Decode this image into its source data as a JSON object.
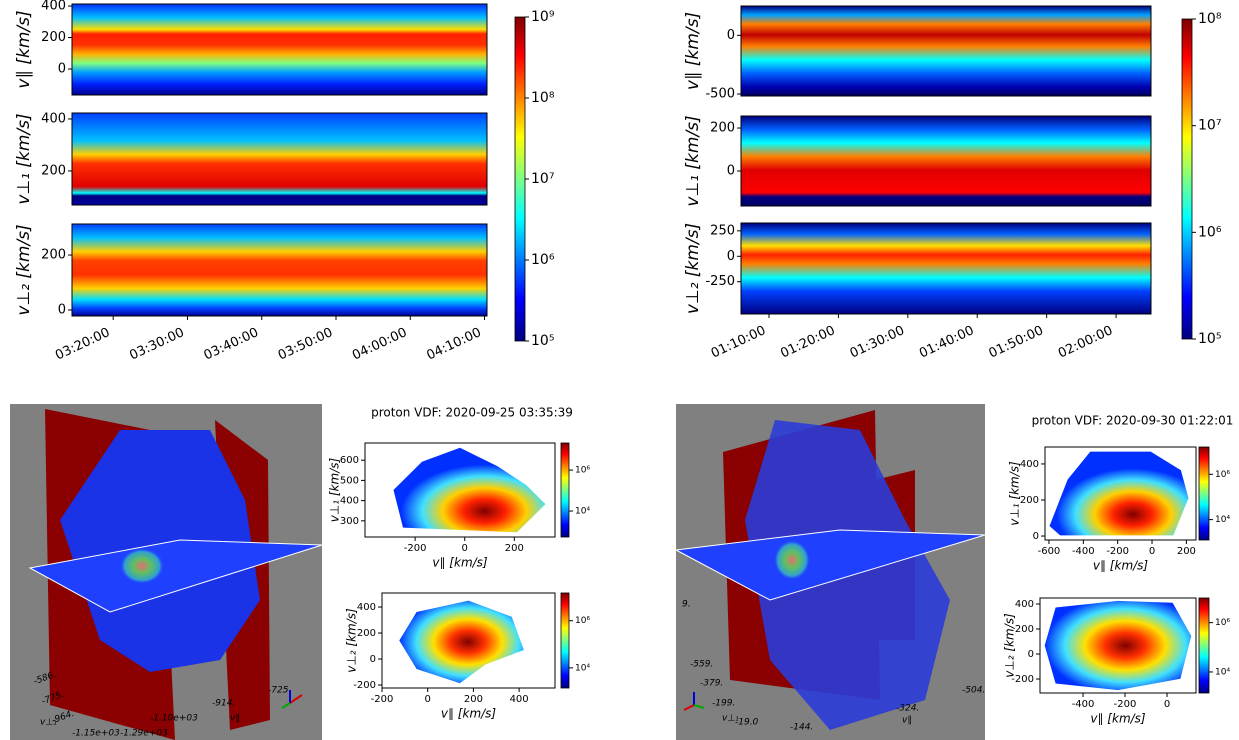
{
  "chart_data": [
    {
      "type": "heatmap",
      "ylabel": "v∥ [km/s]",
      "ylim": [
        -165,
        413
      ],
      "yticks": [
        0,
        200,
        400
      ]
    },
    {
      "type": "heatmap",
      "ylabel": "v⊥₁ [km/s]",
      "ylim": [
        69,
        423
      ],
      "yticks": [
        200,
        400
      ]
    },
    {
      "type": "heatmap",
      "ylabel": "v⊥₂ [km/s]",
      "ylim": [
        -22,
        313
      ],
      "yticks": [
        0,
        200
      ],
      "xlim": [
        "03:14:27",
        "04:10:20"
      ],
      "xticks": [
        "03:20:00",
        "03:30:00",
        "03:40:00",
        "03:50:00",
        "04:00:00",
        "04:10:00"
      ]
    },
    {
      "type": "colorbar",
      "log_scale": true,
      "ylim": [
        100000,
        1000000000
      ],
      "yticks": [
        {
          "value": 100000,
          "label": "10⁵"
        },
        {
          "value": 1000000,
          "label": "10⁶"
        },
        {
          "value": 10000000,
          "label": "10⁷"
        },
        {
          "value": 100000000,
          "label": "10⁸"
        },
        {
          "value": 1000000000,
          "label": "10⁹"
        }
      ]
    },
    {
      "type": "heatmap",
      "ylabel": "v∥ [km/s]",
      "ylim": [
        -517,
        250
      ],
      "yticks": [
        -500,
        0
      ]
    },
    {
      "type": "heatmap",
      "ylabel": "v⊥₁ [km/s]",
      "ylim": [
        -163,
        256
      ],
      "yticks": [
        0,
        200
      ]
    },
    {
      "type": "heatmap",
      "ylabel": "v⊥₂ [km/s]",
      "ylim": [
        -567,
        327
      ],
      "yticks": [
        -250,
        0,
        250
      ],
      "xlim": [
        "01:05:58",
        "02:05:02"
      ],
      "xticks": [
        "01:10:00",
        "01:20:00",
        "01:30:00",
        "01:40:00",
        "01:50:00",
        "02:00:00"
      ]
    },
    {
      "type": "colorbar",
      "log_scale": true,
      "ylim": [
        100000,
        100000000
      ],
      "yticks": [
        {
          "value": 100000,
          "label": "10⁵"
        },
        {
          "value": 1000000,
          "label": "10⁶"
        },
        {
          "value": 10000000,
          "label": "10⁷"
        },
        {
          "value": 100000000,
          "label": "10⁸"
        }
      ]
    },
    {
      "type": "scene3d",
      "labels": [
        "-586.",
        "-775.",
        "-964.",
        "-1.15e+03",
        "-1.29e+03",
        "-1.10e+03",
        "-914.",
        "-725",
        "v⊥₁",
        "v∥"
      ]
    },
    {
      "type": "vdf",
      "title": "proton VDF:  2020-09-25 03:35:39",
      "xlabel": "v∥ [km/s]",
      "ylabel": "v⊥₁ [km/s]",
      "xlim": [
        -402,
        364
      ],
      "xticks": [
        -200,
        0,
        200
      ],
      "ylim": [
        220,
        685
      ],
      "yticks": [
        300,
        400,
        500,
        600
      ]
    },
    {
      "type": "colorbar",
      "log_scale": true,
      "ylim": [
        540,
        21000000
      ],
      "yticks": [
        {
          "value": 10000,
          "label": "10⁴"
        },
        {
          "value": 1000000,
          "label": "10⁶"
        }
      ]
    },
    {
      "type": "vdf",
      "xlabel": "v∥ [km/s]",
      "ylabel": "v⊥₂ [km/s]",
      "xlim": [
        -200,
        557
      ],
      "xticks": [
        -200,
        0,
        200,
        400
      ],
      "ylim": [
        -223,
        508
      ],
      "yticks": [
        -200,
        0,
        200,
        400
      ]
    },
    {
      "type": "colorbar",
      "log_scale": true,
      "ylim": [
        1400,
        15000000
      ],
      "yticks": [
        {
          "value": 10000,
          "label": "10⁴"
        },
        {
          "value": 1000000,
          "label": "10⁶"
        }
      ]
    },
    {
      "type": "scene3d",
      "labels": [
        "9.",
        "-559.",
        "-379.",
        "-199.",
        "-19.0",
        "-144.",
        "-324.",
        "-504.",
        "v⊥₁",
        "v∥"
      ]
    },
    {
      "type": "vdf",
      "title": "proton VDF:  2020-09-30 01:22:01",
      "xlabel": "v∥ [km/s]",
      "ylabel": "v⊥₁ [km/s]",
      "xlim": [
        -623,
        256
      ],
      "xticks": [
        -600,
        -400,
        -200,
        0,
        200
      ],
      "ylim": [
        -22,
        494
      ],
      "yticks": [
        0,
        200,
        400
      ]
    },
    {
      "type": "colorbar",
      "log_scale": true,
      "ylim": [
        1260,
        16000000
      ],
      "yticks": [
        {
          "value": 10000,
          "label": "10⁴"
        },
        {
          "value": 1000000,
          "label": "10⁶"
        }
      ]
    },
    {
      "type": "vdf",
      "xlabel": "v∥ [km/s]",
      "ylabel": "v⊥₂ [km/s]",
      "xlim": [
        -605,
        138
      ],
      "xticks": [
        -400,
        -200,
        0
      ],
      "ylim": [
        -312,
        448
      ],
      "yticks": [
        -200,
        0,
        200,
        400
      ]
    },
    {
      "type": "colorbar",
      "log_scale": true,
      "ylim": [
        1400,
        10000000
      ],
      "yticks": [
        {
          "value": 10000,
          "label": "10⁴"
        },
        {
          "value": 1000000,
          "label": "10⁶"
        }
      ]
    }
  ]
}
